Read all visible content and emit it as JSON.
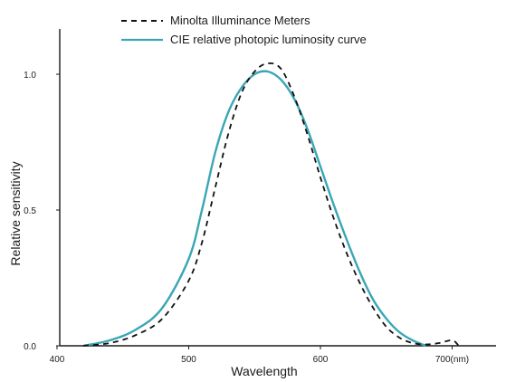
{
  "chart_data": {
    "type": "line",
    "title": "",
    "xlabel": "Wavelength",
    "ylabel": "Relative sensitivity",
    "xlim": [
      400,
      700
    ],
    "ylim": [
      0,
      1.0
    ],
    "x_ticks": [
      {
        "value": 400,
        "label": "400"
      },
      {
        "value": 500,
        "label": "500"
      },
      {
        "value": 600,
        "label": "600"
      },
      {
        "value": 700,
        "label": "700(nm)"
      }
    ],
    "y_ticks": [
      {
        "value": 0,
        "label": "0.0"
      },
      {
        "value": 0.5,
        "label": "0.5"
      },
      {
        "value": 1.0,
        "label": "1.0"
      }
    ],
    "grid": false,
    "legend_position": "top-center",
    "series": [
      {
        "name": "Minolta Illuminance Meters",
        "style": "dashed",
        "color": "#111111",
        "points": [
          [
            420,
            0.0
          ],
          [
            440,
            0.01
          ],
          [
            460,
            0.04
          ],
          [
            480,
            0.1
          ],
          [
            500,
            0.24
          ],
          [
            510,
            0.38
          ],
          [
            520,
            0.58
          ],
          [
            530,
            0.78
          ],
          [
            540,
            0.93
          ],
          [
            550,
            1.01
          ],
          [
            560,
            1.04
          ],
          [
            570,
            1.02
          ],
          [
            580,
            0.92
          ],
          [
            590,
            0.78
          ],
          [
            600,
            0.62
          ],
          [
            610,
            0.47
          ],
          [
            620,
            0.34
          ],
          [
            630,
            0.23
          ],
          [
            640,
            0.14
          ],
          [
            650,
            0.07
          ],
          [
            660,
            0.03
          ],
          [
            670,
            0.01
          ],
          [
            680,
            0.005
          ],
          [
            690,
            0.01
          ],
          [
            700,
            0.02
          ],
          [
            705,
            0.0
          ]
        ]
      },
      {
        "name": "CIE relative photopic luminosity curve",
        "style": "solid",
        "color": "#3aa6b5",
        "points": [
          [
            420,
            0.0
          ],
          [
            440,
            0.02
          ],
          [
            460,
            0.06
          ],
          [
            480,
            0.14
          ],
          [
            500,
            0.32
          ],
          [
            510,
            0.5
          ],
          [
            520,
            0.71
          ],
          [
            530,
            0.86
          ],
          [
            540,
            0.95
          ],
          [
            550,
            1.0
          ],
          [
            560,
            1.01
          ],
          [
            570,
            0.98
          ],
          [
            580,
            0.91
          ],
          [
            590,
            0.8
          ],
          [
            600,
            0.66
          ],
          [
            610,
            0.52
          ],
          [
            620,
            0.39
          ],
          [
            630,
            0.27
          ],
          [
            640,
            0.17
          ],
          [
            650,
            0.1
          ],
          [
            660,
            0.05
          ],
          [
            670,
            0.02
          ],
          [
            680,
            0.0
          ]
        ]
      }
    ]
  },
  "colors": {
    "axis": "#1a1a1a",
    "minolta": "#111111",
    "cie": "#3aa6b5"
  }
}
